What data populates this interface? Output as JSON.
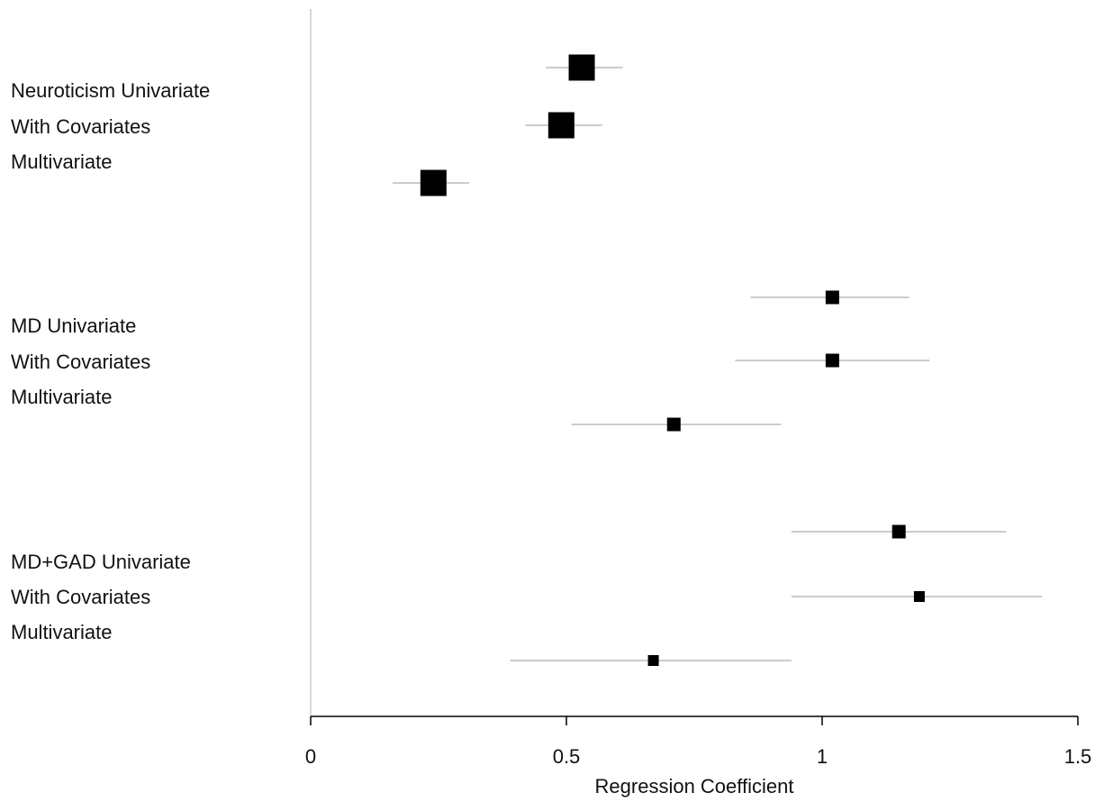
{
  "chart_data": {
    "type": "scatter",
    "subtype": "forest-plot",
    "title": "",
    "xlabel": "Regression Coefficient",
    "ylabel": "",
    "xlim": [
      0,
      1.5
    ],
    "xticks": [
      {
        "value": 0,
        "label": "0"
      },
      {
        "value": 0.5,
        "label": "0.5"
      },
      {
        "value": 1,
        "label": "1"
      },
      {
        "value": 1.5,
        "label": "1.5"
      }
    ],
    "grid": false,
    "legend": "none",
    "colors": {
      "marker": "#000000",
      "ci_line": "#bbbbbb",
      "reference_line": "#cccccc",
      "axis": "#000000"
    },
    "groups": [
      {
        "labels": [
          "Neuroticism Univariate",
          "With Covariates",
          "Multivariate"
        ],
        "points": [
          {
            "estimate": 0.53,
            "ci": [
              0.46,
              0.61
            ],
            "weight": "large"
          },
          {
            "estimate": 0.49,
            "ci": [
              0.42,
              0.57
            ],
            "weight": "large"
          },
          {
            "estimate": 0.24,
            "ci": [
              0.16,
              0.31
            ],
            "weight": "large"
          }
        ]
      },
      {
        "labels": [
          "MD Univariate",
          "With Covariates",
          "Multivariate"
        ],
        "points": [
          {
            "estimate": 1.02,
            "ci": [
              0.86,
              1.17
            ],
            "weight": "medium"
          },
          {
            "estimate": 1.02,
            "ci": [
              0.83,
              1.21
            ],
            "weight": "medium"
          },
          {
            "estimate": 0.71,
            "ci": [
              0.51,
              0.92
            ],
            "weight": "medium"
          }
        ]
      },
      {
        "labels": [
          "MD+GAD Univariate",
          "With Covariates",
          "Multivariate"
        ],
        "points": [
          {
            "estimate": 1.15,
            "ci": [
              0.94,
              1.36
            ],
            "weight": "medium"
          },
          {
            "estimate": 1.19,
            "ci": [
              0.94,
              1.43
            ],
            "weight": "small"
          },
          {
            "estimate": 0.67,
            "ci": [
              0.39,
              0.94
            ],
            "weight": "small"
          }
        ]
      }
    ]
  }
}
